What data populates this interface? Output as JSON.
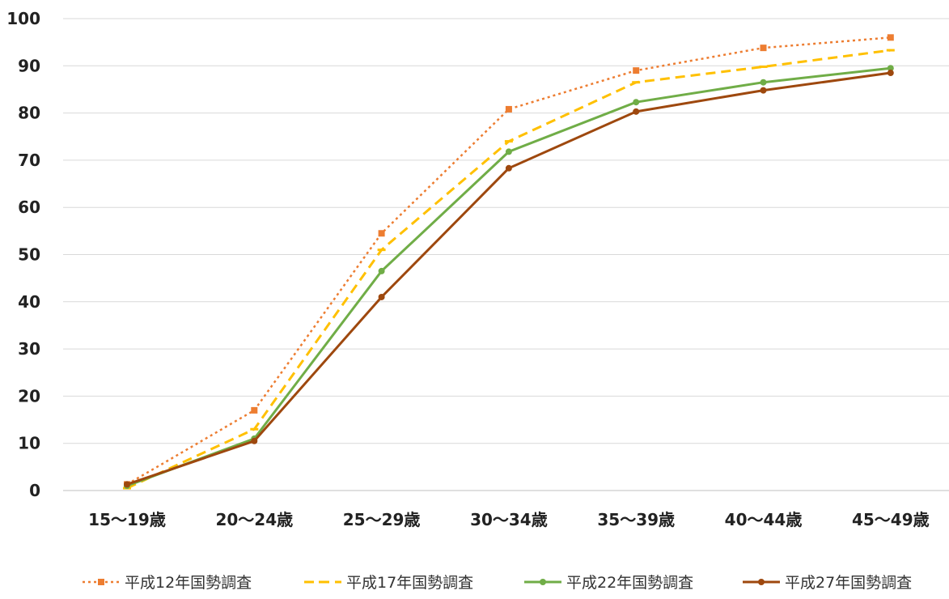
{
  "chart_data": {
    "type": "line",
    "categories": [
      "15～19歳",
      "20～24歳",
      "25～29歳",
      "30～34歳",
      "35～39歳",
      "40～44歳",
      "45～49歳"
    ],
    "ylim": [
      0,
      100
    ],
    "yticks": [
      0,
      10,
      20,
      30,
      40,
      50,
      60,
      70,
      80,
      90,
      100
    ],
    "grid": true,
    "legend_position": "bottom",
    "series": [
      {
        "name": "平成12年国勢調査",
        "color": "#ED7D31",
        "style": "dotted",
        "marker": "square",
        "values": [
          1.3,
          17.0,
          54.5,
          80.8,
          89.0,
          93.8,
          96.0
        ]
      },
      {
        "name": "平成17年国勢調査",
        "color": "#FFC000",
        "style": "dashed",
        "marker": "dash",
        "values": [
          0.5,
          13.0,
          51.0,
          74.0,
          86.5,
          89.8,
          93.3
        ]
      },
      {
        "name": "平成22年国勢調査",
        "color": "#70AD47",
        "style": "solid",
        "marker": "circle",
        "values": [
          1.0,
          11.0,
          46.5,
          71.8,
          82.3,
          86.5,
          89.5
        ]
      },
      {
        "name": "平成27年国勢調査",
        "color": "#9E480E",
        "style": "solid",
        "marker": "circle",
        "values": [
          1.3,
          10.5,
          41.0,
          68.3,
          80.3,
          84.8,
          88.5
        ]
      }
    ]
  }
}
